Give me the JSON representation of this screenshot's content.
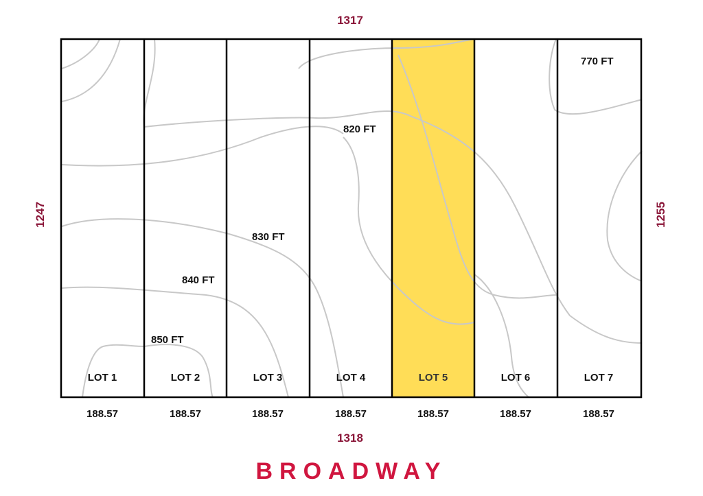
{
  "colors": {
    "dimension": "#8a1538",
    "street": "#d0163f",
    "highlight": "#ffdd57",
    "boundary": "#000000",
    "contour": "#c8c8c8"
  },
  "dimensions": {
    "top": "1317",
    "bottom": "1318",
    "left": "1247",
    "right": "1255"
  },
  "street_name": "BROADWAY",
  "highlighted_lot": "LOT 5",
  "lots": [
    {
      "label": "LOT 1",
      "width": "188.57"
    },
    {
      "label": "LOT 2",
      "width": "188.57"
    },
    {
      "label": "LOT 3",
      "width": "188.57"
    },
    {
      "label": "LOT 4",
      "width": "188.57"
    },
    {
      "label": "LOT 5",
      "width": "188.57"
    },
    {
      "label": "LOT 6",
      "width": "188.57"
    },
    {
      "label": "LOT 7",
      "width": "188.57"
    }
  ],
  "contour_labels": [
    {
      "text": "770 FT"
    },
    {
      "text": "820 FT"
    },
    {
      "text": "830 FT"
    },
    {
      "text": "840 FT"
    },
    {
      "text": "850 FT"
    }
  ]
}
